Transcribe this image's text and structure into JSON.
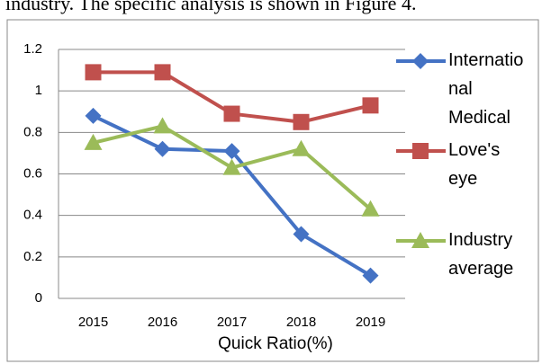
{
  "caption": "industry. The specific analysis is shown in Figure 4.",
  "chart_data": {
    "type": "line",
    "x_label": "Quick Ratio(%)",
    "categories": [
      "2015",
      "2016",
      "2017",
      "2018",
      "2019"
    ],
    "series": [
      {
        "name": "International Medical",
        "color": "#4472c4",
        "marker": "diamond",
        "values": [
          0.88,
          0.72,
          0.71,
          0.31,
          0.11
        ]
      },
      {
        "name": "Love's eye",
        "color": "#c0504d",
        "marker": "square",
        "values": [
          1.09,
          1.09,
          0.89,
          0.85,
          0.93
        ]
      },
      {
        "name": "Industry average",
        "color": "#9bbb59",
        "marker": "triangle",
        "values": [
          0.75,
          0.83,
          0.63,
          0.72,
          0.43
        ]
      }
    ],
    "ylim": [
      0,
      1.2
    ],
    "yticks": [
      0,
      0.2,
      0.4,
      0.6,
      0.8,
      1,
      1.2
    ],
    "grid": true,
    "legend": "right"
  }
}
